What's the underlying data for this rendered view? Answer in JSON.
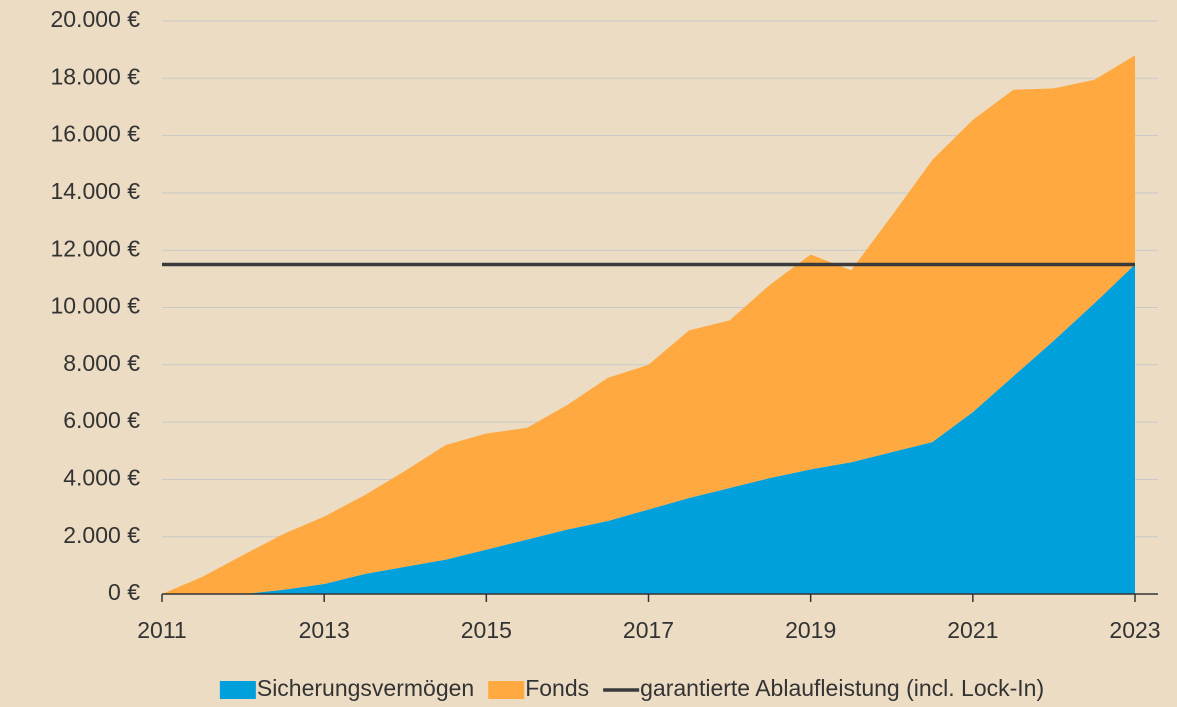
{
  "chart_data": {
    "type": "area",
    "x": [
      2011,
      2011.5,
      2012,
      2012.5,
      2013,
      2013.5,
      2014,
      2014.5,
      2015,
      2015.5,
      2016,
      2016.5,
      2017,
      2017.5,
      2018,
      2018.5,
      2019,
      2019.5,
      2020,
      2020.5,
      2021,
      2021.5,
      2022,
      2022.5,
      2023
    ],
    "series": [
      {
        "name": "Sicherungsvermögen",
        "color": "#00a0dc",
        "stacked": true,
        "values": [
          0,
          0,
          0,
          150,
          350,
          700,
          950,
          1200,
          1550,
          1900,
          2250,
          2550,
          2950,
          3350,
          3700,
          4050,
          4350,
          4600,
          4950,
          5300,
          6350,
          7600,
          8850,
          10150,
          11500
        ]
      },
      {
        "name": "Fonds",
        "color": "#ffa940",
        "stacked": true,
        "values": [
          0,
          600,
          1360,
          1950,
          2350,
          2750,
          3350,
          4000,
          4050,
          3900,
          4350,
          5000,
          5050,
          5850,
          5850,
          6750,
          7500,
          6700,
          8250,
          9850,
          10200,
          10000,
          8800,
          7800,
          7300
        ]
      },
      {
        "name": "garantierte Ablaufleistung (incl. Lock-In)",
        "color": "#3a3a3a",
        "stacked": false,
        "values": [
          11500,
          11500,
          11500,
          11500,
          11500,
          11500,
          11500,
          11500,
          11500,
          11500,
          11500,
          11500,
          11500,
          11500,
          11500,
          11500,
          11500,
          11500,
          11500,
          11500,
          11500,
          11500,
          11500,
          11500,
          11500
        ]
      }
    ],
    "xlim": [
      2011,
      2023
    ],
    "xticks": [
      2011,
      2013,
      2015,
      2017,
      2019,
      2021,
      2023
    ],
    "ylim": [
      0,
      20000
    ],
    "yticks": [
      {
        "value": 0,
        "label": "0 €"
      },
      {
        "value": 2000,
        "label": "2.000 €"
      },
      {
        "value": 4000,
        "label": "4.000 €"
      },
      {
        "value": 6000,
        "label": "6.000 €"
      },
      {
        "value": 8000,
        "label": "8.000 €"
      },
      {
        "value": 10000,
        "label": "10.000 €"
      },
      {
        "value": 12000,
        "label": "12.000 €"
      },
      {
        "value": 14000,
        "label": "14.000 €"
      },
      {
        "value": 16000,
        "label": "16.000 €"
      },
      {
        "value": 18000,
        "label": "18.000 €"
      },
      {
        "value": 20000,
        "label": "20.000 €"
      }
    ],
    "grid": true,
    "legend": "bottom"
  }
}
